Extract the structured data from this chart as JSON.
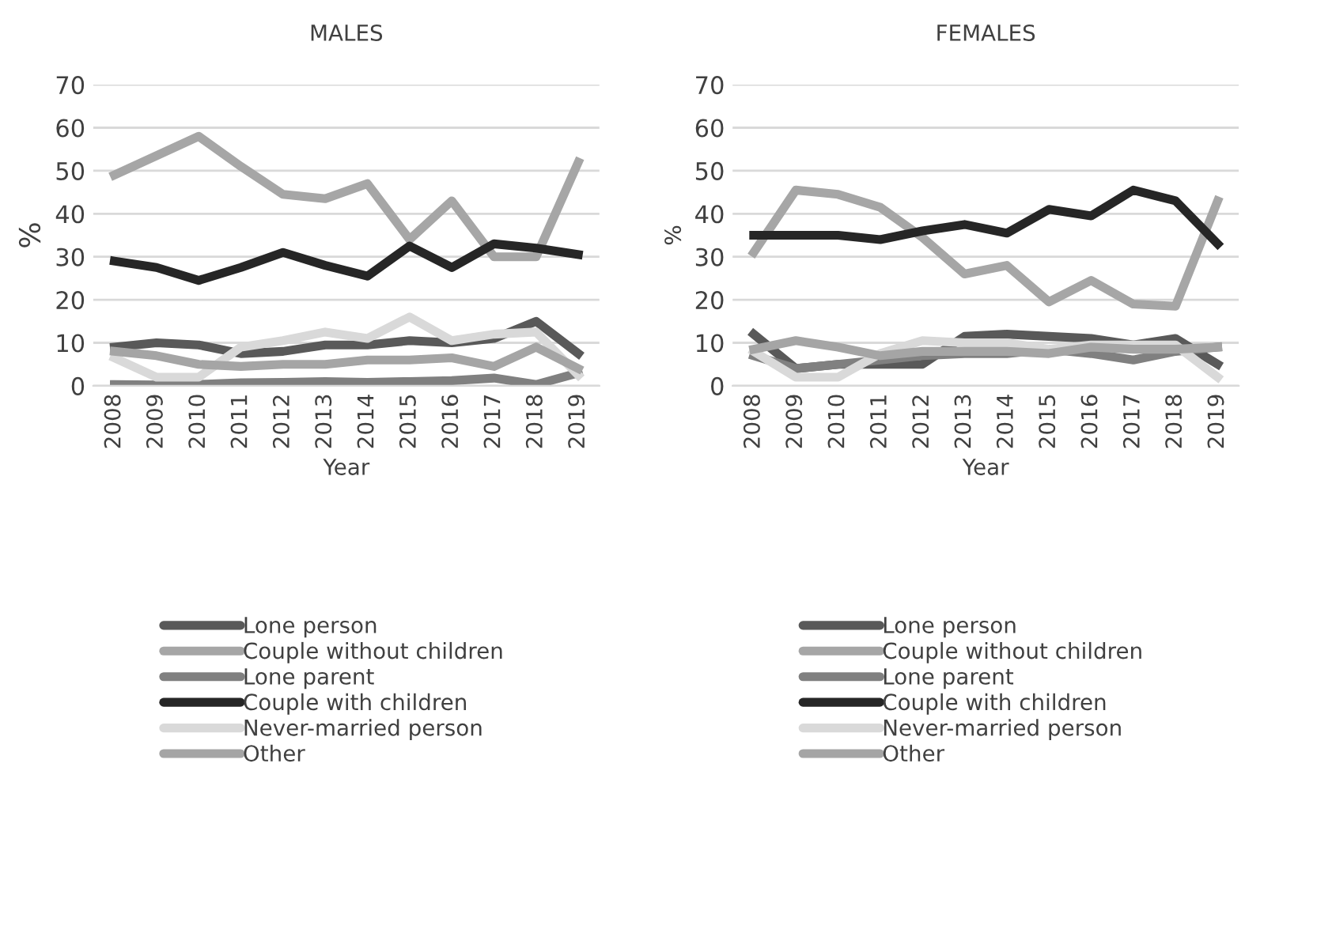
{
  "chart_data": [
    {
      "type": "line",
      "title": "MALES",
      "xlabel": "Year",
      "ylabel": "%",
      "categories": [
        "2008",
        "2009",
        "2010",
        "2011",
        "2012",
        "2013",
        "2014",
        "2015",
        "2016",
        "2017",
        "2018",
        "2019"
      ],
      "ylim": [
        0,
        70
      ],
      "yticks": [
        0,
        10,
        20,
        30,
        40,
        50,
        60,
        70
      ],
      "grid": "y",
      "legend": "bottom",
      "marker": "none",
      "line_style": "solid",
      "series": [
        {
          "name": "Lone person",
          "color": "#595959",
          "values": [
            9,
            10,
            9.5,
            7.5,
            8,
            9.5,
            9.5,
            10.5,
            10,
            11,
            15,
            7.5
          ]
        },
        {
          "name": "Couple without children",
          "color": "#a6a6a6",
          "values": [
            49,
            53.5,
            58,
            51,
            44.5,
            43.5,
            47,
            34,
            43,
            30,
            30,
            52
          ]
        },
        {
          "name": "Lone parent",
          "color": "#808080",
          "values": [
            0.3,
            0.2,
            0.3,
            0.7,
            0.8,
            1,
            0.8,
            1,
            1.2,
            1.8,
            0.3,
            3
          ]
        },
        {
          "name": "Couple with children",
          "color": "#262626",
          "values": [
            29,
            27.5,
            24.5,
            27.5,
            31,
            28,
            25.5,
            32.5,
            27.5,
            33,
            32,
            30.5
          ]
        },
        {
          "name": "Never-married person",
          "color": "#d9d9d9",
          "values": [
            6.5,
            2,
            2,
            9,
            10.5,
            12.5,
            11,
            16,
            10.5,
            12,
            12.5,
            2.5
          ]
        },
        {
          "name": "Other",
          "color": "#a5a5a5",
          "values": [
            8,
            7,
            5,
            4.5,
            5,
            5,
            6,
            6,
            6.5,
            4.5,
            9,
            4
          ]
        }
      ]
    },
    {
      "type": "line",
      "title": "FEMALES",
      "xlabel": "Year",
      "ylabel": "%",
      "categories": [
        "2008",
        "2009",
        "2010",
        "2011",
        "2012",
        "2013",
        "2014",
        "2015",
        "2016",
        "2017",
        "2018",
        "2019"
      ],
      "ylim": [
        0,
        70
      ],
      "yticks": [
        0,
        10,
        20,
        30,
        40,
        50,
        60,
        70
      ],
      "grid": "y",
      "legend": "bottom",
      "marker": "none",
      "line_style": "solid",
      "series": [
        {
          "name": "Lone person",
          "color": "#595959",
          "values": [
            12,
            4,
            5,
            5,
            5,
            11.5,
            12,
            11.5,
            11,
            9.5,
            11,
            5
          ]
        },
        {
          "name": "Couple without children",
          "color": "#a6a6a6",
          "values": [
            31,
            45.5,
            44.5,
            41.5,
            34.5,
            26,
            28,
            19.5,
            24.5,
            19,
            18.5,
            43
          ]
        },
        {
          "name": "Lone parent",
          "color": "#808080",
          "values": [
            7,
            4,
            5,
            6,
            7,
            7.5,
            7.5,
            8.5,
            7.5,
            6,
            8,
            9
          ]
        },
        {
          "name": "Couple with children",
          "color": "#262626",
          "values": [
            35,
            35,
            35,
            34,
            36,
            37.5,
            35.5,
            41,
            39.5,
            45.5,
            43,
            33
          ]
        },
        {
          "name": "Never-married person",
          "color": "#d9d9d9",
          "values": [
            8,
            2,
            2,
            7.5,
            10.5,
            10,
            10,
            8.5,
            9.5,
            9.5,
            9.5,
            2
          ]
        },
        {
          "name": "Other",
          "color": "#a5a5a5",
          "values": [
            8.5,
            10.5,
            9,
            7,
            8,
            8,
            8,
            7.5,
            9,
            8.5,
            8.5,
            9
          ]
        }
      ]
    }
  ]
}
